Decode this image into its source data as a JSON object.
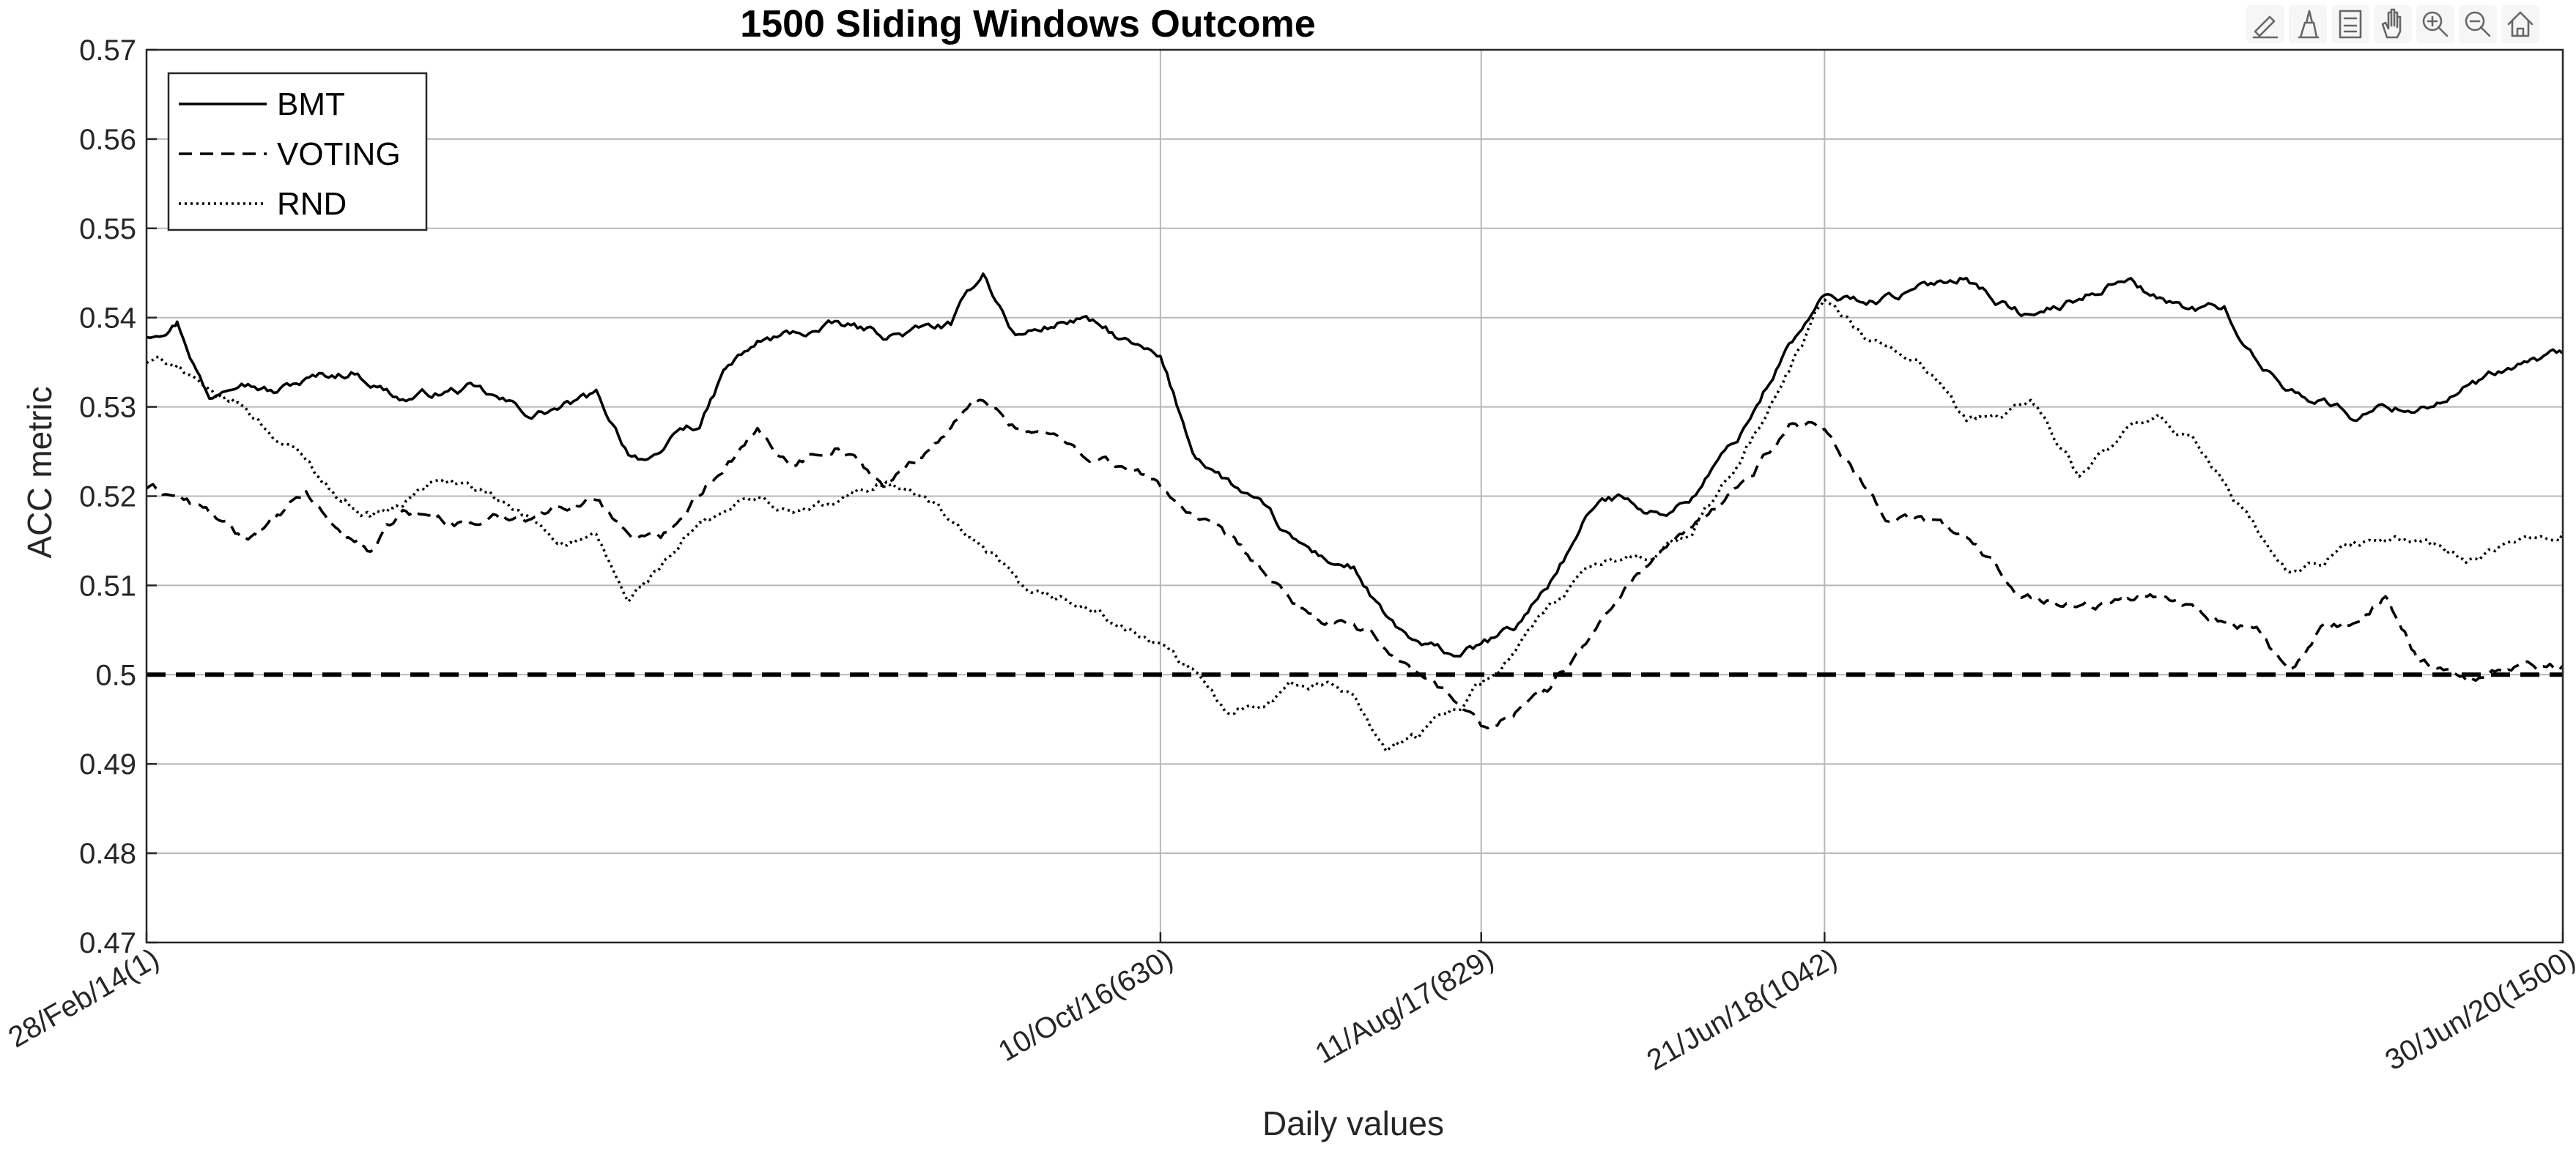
{
  "toolbar": {
    "icons": [
      "brush-edit-icon",
      "data-cursor-icon",
      "legend-toggle-icon",
      "pan-hand-icon",
      "zoom-in-icon",
      "zoom-out-icon",
      "home-restore-icon"
    ]
  },
  "chart_data": {
    "type": "line",
    "title": "1500 Sliding Windows Outcome",
    "xlabel": "Daily values",
    "ylabel": "ACC metric",
    "xlim": [
      1,
      1500
    ],
    "ylim": [
      0.47,
      0.57
    ],
    "grid": true,
    "legend_position": "top-left",
    "y_ticks": [
      0.47,
      0.48,
      0.49,
      0.5,
      0.51,
      0.52,
      0.53,
      0.54,
      0.55,
      0.56,
      0.57
    ],
    "y_tick_labels": [
      "0.47",
      "0.48",
      "0.49",
      "0.5",
      "0.51",
      "0.52",
      "0.53",
      "0.54",
      "0.55",
      "0.56",
      "0.57"
    ],
    "x_ticks": [
      1,
      630,
      829,
      1042,
      1500
    ],
    "x_tick_labels": [
      "28/Feb/14(1)",
      "10/Oct/16(630)",
      "11/Aug/17(829)",
      "21/Jun/18(1042)",
      "30/Jun/20(1500)"
    ],
    "reference_line": {
      "y": 0.5,
      "style": "dashed"
    },
    "series": [
      {
        "name": "BMT",
        "style": "solid",
        "x": [
          1,
          20,
          40,
          60,
          80,
          100,
          130,
          160,
          200,
          240,
          280,
          300,
          320,
          330,
          345,
          360,
          380,
          400,
          430,
          460,
          500,
          520,
          540,
          560,
          580,
          600,
          630,
          650,
          670,
          690,
          710,
          730,
          750,
          770,
          790,
          810,
          829,
          850,
          870,
          900,
          920,
          940,
          960,
          990,
          1020,
          1042,
          1070,
          1100,
          1130,
          1150,
          1170,
          1200,
          1230,
          1250,
          1270,
          1290,
          1310,
          1330,
          1350,
          1370,
          1390,
          1410,
          1440,
          1470,
          1500
        ],
        "values": [
          0.538,
          0.54,
          0.531,
          0.534,
          0.532,
          0.533,
          0.534,
          0.531,
          0.532,
          0.529,
          0.531,
          0.525,
          0.524,
          0.527,
          0.528,
          0.534,
          0.537,
          0.538,
          0.539,
          0.538,
          0.539,
          0.545,
          0.538,
          0.539,
          0.54,
          0.538,
          0.535,
          0.525,
          0.522,
          0.519,
          0.515,
          0.513,
          0.512,
          0.506,
          0.503,
          0.502,
          0.503,
          0.505,
          0.51,
          0.519,
          0.52,
          0.518,
          0.52,
          0.527,
          0.537,
          0.542,
          0.542,
          0.543,
          0.545,
          0.542,
          0.54,
          0.542,
          0.545,
          0.542,
          0.541,
          0.541,
          0.535,
          0.532,
          0.531,
          0.529,
          0.53,
          0.53,
          0.532,
          0.534,
          0.536
        ]
      },
      {
        "name": "VOTING",
        "style": "dashed",
        "x": [
          1,
          20,
          40,
          60,
          80,
          100,
          120,
          140,
          160,
          200,
          240,
          280,
          300,
          320,
          340,
          360,
          380,
          400,
          430,
          460,
          490,
          500,
          520,
          540,
          560,
          580,
          600,
          630,
          650,
          670,
          690,
          710,
          730,
          750,
          770,
          790,
          810,
          829,
          850,
          870,
          900,
          920,
          940,
          960,
          990,
          1020,
          1042,
          1060,
          1080,
          1100,
          1130,
          1160,
          1190,
          1220,
          1250,
          1280,
          1310,
          1330,
          1350,
          1370,
          1390,
          1410,
          1440,
          1470,
          1500
        ],
        "values": [
          0.521,
          0.52,
          0.518,
          0.515,
          0.517,
          0.52,
          0.516,
          0.514,
          0.518,
          0.517,
          0.518,
          0.52,
          0.516,
          0.515,
          0.52,
          0.524,
          0.527,
          0.524,
          0.526,
          0.521,
          0.526,
          0.528,
          0.531,
          0.528,
          0.527,
          0.525,
          0.524,
          0.521,
          0.518,
          0.515,
          0.512,
          0.508,
          0.506,
          0.505,
          0.503,
          0.5,
          0.498,
          0.494,
          0.496,
          0.498,
          0.505,
          0.51,
          0.514,
          0.516,
          0.521,
          0.528,
          0.528,
          0.523,
          0.518,
          0.518,
          0.515,
          0.51,
          0.508,
          0.508,
          0.509,
          0.507,
          0.505,
          0.5,
          0.505,
          0.505,
          0.509,
          0.502,
          0.5,
          0.501,
          0.501
        ]
      },
      {
        "name": "RND",
        "style": "dotted",
        "x": [
          1,
          20,
          40,
          60,
          80,
          100,
          120,
          140,
          160,
          180,
          200,
          220,
          240,
          260,
          280,
          300,
          320,
          340,
          360,
          380,
          400,
          430,
          460,
          490,
          510,
          530,
          550,
          570,
          590,
          610,
          630,
          650,
          670,
          690,
          710,
          730,
          750,
          770,
          790,
          810,
          829,
          850,
          870,
          900,
          920,
          940,
          960,
          990,
          1020,
          1042,
          1070,
          1100,
          1130,
          1150,
          1170,
          1200,
          1230,
          1250,
          1270,
          1290,
          1310,
          1330,
          1350,
          1370,
          1390,
          1410,
          1440,
          1470,
          1500
        ],
        "values": [
          0.535,
          0.535,
          0.531,
          0.53,
          0.527,
          0.524,
          0.52,
          0.518,
          0.519,
          0.522,
          0.521,
          0.519,
          0.517,
          0.515,
          0.515,
          0.508,
          0.512,
          0.516,
          0.518,
          0.52,
          0.518,
          0.519,
          0.522,
          0.519,
          0.515,
          0.512,
          0.508,
          0.508,
          0.507,
          0.505,
          0.503,
          0.5,
          0.496,
          0.497,
          0.499,
          0.499,
          0.498,
          0.492,
          0.493,
          0.496,
          0.499,
          0.503,
          0.507,
          0.512,
          0.513,
          0.514,
          0.516,
          0.524,
          0.534,
          0.542,
          0.537,
          0.535,
          0.528,
          0.529,
          0.531,
          0.522,
          0.527,
          0.528,
          0.526,
          0.522,
          0.516,
          0.511,
          0.512,
          0.515,
          0.515,
          0.515,
          0.513,
          0.514,
          0.516
        ]
      }
    ]
  }
}
